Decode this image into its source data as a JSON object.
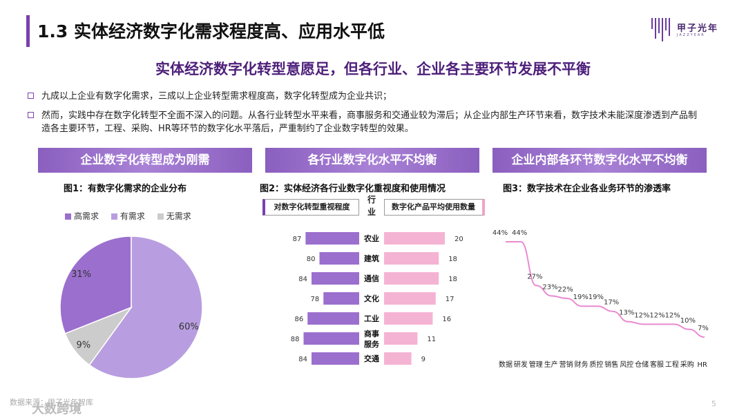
{
  "header": {
    "title": "1.3 实体经济数字化需求程度高、应用水平低",
    "subtitle": "实体经济数字化转型意愿足，但各行业、企业各主要环节发展不平衡",
    "logo_text": "甲子光年",
    "logo_sub": "JAZZYEAR"
  },
  "bullets": [
    "九成以上企业有数字化需求，三成以上企业转型需求程度高，数字化转型成为企业共识；",
    "然而，实践中存在数字化转型不全面不深入的问题。从各行业转型水平来看，商事服务和交通业较为滞后；从企业内部生产环节来看，数字技术未能深度渗透到产品制造各主要环节，工程、采购、HR等环节的数字化水平落后，严重制约了企业数字转型的效果。"
  ],
  "panels": [
    {
      "heading": "企业数字化转型成为刚需",
      "fig_title": "图1：有数字化需求的企业分布"
    },
    {
      "heading": "各行业数字化水平不均衡",
      "fig_title": "图2：实体经济各行业数字化重视度和使用情况"
    },
    {
      "heading": "企业内部各环节数字化水平不均衡",
      "fig_title": "图3：数字技术在企业各业务环节的渗透率"
    }
  ],
  "footer": {
    "source": "数据来源：甲子光年智库",
    "watermark": "大数跨境",
    "page": "5"
  },
  "colors": {
    "accent": "#7a3fb0",
    "high": "#9b6fce",
    "mid": "#b89ee0",
    "none": "#cccccc",
    "pink": "#f5b3d3",
    "line": "#e98ad0"
  },
  "chart_data": [
    {
      "type": "pie",
      "title": "图1：有数字化需求的企业分布",
      "categories": [
        "高需求",
        "有需求",
        "无需求"
      ],
      "values": [
        31,
        60,
        9
      ],
      "value_labels": [
        "31%",
        "60%",
        "9%"
      ],
      "legend": "top"
    },
    {
      "type": "bar",
      "title": "图2：实体经济各行业数字化重视度和使用情况",
      "category_header": "行业",
      "categories": [
        "农业",
        "建筑",
        "通信",
        "文化",
        "工业",
        "商事服务",
        "交通"
      ],
      "series": [
        {
          "name": "对数字化转型重视程度",
          "values": [
            87,
            80,
            84,
            78,
            86,
            88,
            84
          ]
        },
        {
          "name": "数字化产品平均使用数量",
          "values": [
            20,
            18,
            18,
            17,
            16,
            11,
            9
          ]
        }
      ]
    },
    {
      "type": "line",
      "title": "图3：数字技术在企业各业务环节的渗透率",
      "categories": [
        "数据",
        "研发",
        "管理",
        "生产",
        "营销",
        "财务",
        "质控",
        "销售",
        "风控",
        "仓储",
        "客服",
        "工程",
        "采购",
        "HR"
      ],
      "values": [
        44,
        44,
        27,
        23,
        22,
        19,
        19,
        17,
        13,
        12,
        12,
        12,
        10,
        7
      ],
      "value_labels": [
        "44%",
        "44%",
        "27%",
        "23%",
        "22%",
        "19%",
        "19%",
        "17%",
        "13%",
        "12%",
        "12%",
        "12%",
        "10%",
        "7%"
      ]
    }
  ]
}
